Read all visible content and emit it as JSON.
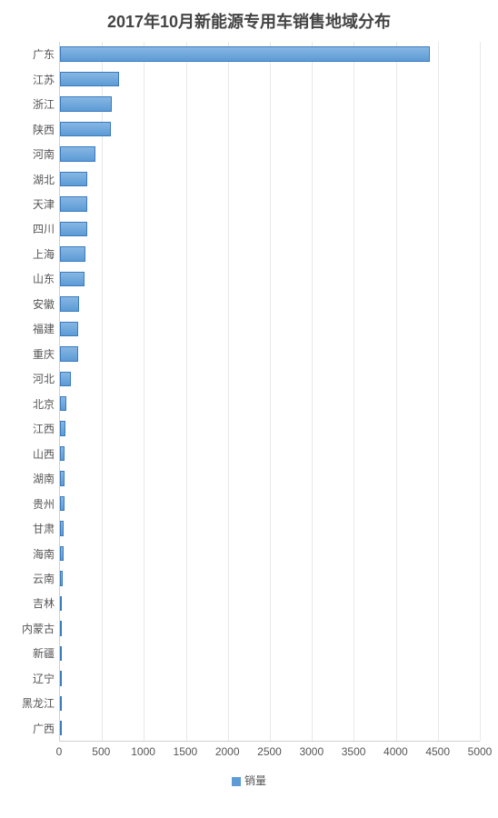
{
  "chart": {
    "type": "bar-horizontal",
    "title": "2017年10月新能源专用车销售地域分布",
    "title_fontsize": 18,
    "title_color": "#444444",
    "background_color": "#ffffff",
    "grid_color": "#e8e8e8",
    "axis_color": "#d0d0d0",
    "label_color": "#555555",
    "label_fontsize": 12,
    "bar_fill_top": "#87b7e4",
    "bar_fill_bottom": "#5c9bd5",
    "bar_border": "#3a7abd",
    "bar_width_ratio": 0.6,
    "xlim": [
      0,
      5000
    ],
    "xtick_step": 500,
    "xticks": [
      0,
      500,
      1000,
      1500,
      2000,
      2500,
      3000,
      3500,
      4000,
      4500,
      5000
    ],
    "legend_label": "销量",
    "categories": [
      "广东",
      "江苏",
      "浙江",
      "陕西",
      "河南",
      "湖北",
      "天津",
      "四川",
      "上海",
      "山东",
      "安徽",
      "福建",
      "重庆",
      "河北",
      "北京",
      "江西",
      "山西",
      "湖南",
      "贵州",
      "甘肃",
      "海南",
      "云南",
      "吉林",
      "内蒙古",
      "新疆",
      "辽宁",
      "黑龙江",
      "广西"
    ],
    "values": [
      4400,
      700,
      620,
      610,
      420,
      320,
      320,
      320,
      300,
      290,
      230,
      220,
      220,
      130,
      80,
      60,
      55,
      55,
      50,
      45,
      45,
      30,
      25,
      22,
      20,
      20,
      18,
      15
    ]
  }
}
